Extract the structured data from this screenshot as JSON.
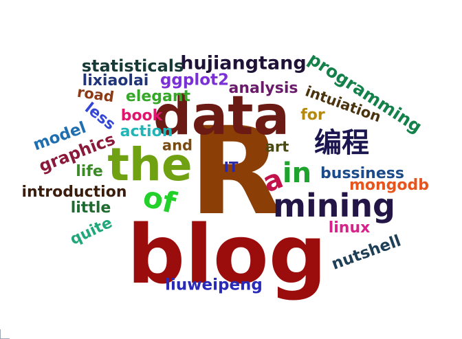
{
  "words": [
    {
      "id": "blog",
      "text": "blog",
      "color": "#9b0d0d"
    },
    {
      "id": "R",
      "text": "R",
      "color": "#8b3f06"
    },
    {
      "id": "data",
      "text": "data",
      "color": "#6b1a14"
    },
    {
      "id": "the",
      "text": "the",
      "color": "#6fa112"
    },
    {
      "id": "mining",
      "text": "mining",
      "color": "#231647"
    },
    {
      "id": "of",
      "text": "of",
      "color": "#23d12a"
    },
    {
      "id": "in",
      "text": "in",
      "color": "#1fa32e"
    },
    {
      "id": "a",
      "text": "a",
      "color": "#c1124a"
    },
    {
      "id": "biancheng",
      "text": "编程",
      "color": "#1b1650"
    },
    {
      "id": "programming",
      "text": "programming",
      "color": "#14804a"
    },
    {
      "id": "hujiangtang",
      "text": "hujiangtang",
      "color": "#1e1236"
    },
    {
      "id": "statisticals",
      "text": "statisticals",
      "color": "#173a36"
    },
    {
      "id": "ggplot2",
      "text": "ggplot2",
      "color": "#7b2fd6"
    },
    {
      "id": "lixiaolai",
      "text": "lixiaolai",
      "color": "#20347a"
    },
    {
      "id": "road",
      "text": "road",
      "color": "#8b3b18"
    },
    {
      "id": "elegant",
      "text": "elegant",
      "color": "#36a828"
    },
    {
      "id": "analysis",
      "text": "analysis",
      "color": "#6a1c6b"
    },
    {
      "id": "intuiation",
      "text": "intuiation",
      "color": "#4a3410"
    },
    {
      "id": "less",
      "text": "less",
      "color": "#3446d6"
    },
    {
      "id": "book",
      "text": "book",
      "color": "#e0156e"
    },
    {
      "id": "for",
      "text": "for",
      "color": "#b5880e"
    },
    {
      "id": "model",
      "text": "model",
      "color": "#1f6fb0"
    },
    {
      "id": "action",
      "text": "action",
      "color": "#22b5b8"
    },
    {
      "id": "graphics",
      "text": "graphics",
      "color": "#8b1a3a"
    },
    {
      "id": "and",
      "text": "and",
      "color": "#7a4a13"
    },
    {
      "id": "art",
      "text": "art",
      "color": "#4a4a12"
    },
    {
      "id": "IT",
      "text": "IT",
      "color": "#2d2aa8"
    },
    {
      "id": "life",
      "text": "life",
      "color": "#3c8a27"
    },
    {
      "id": "bussiness",
      "text": "bussiness",
      "color": "#1c4b8a"
    },
    {
      "id": "mongodb",
      "text": "mongodb",
      "color": "#e8551c"
    },
    {
      "id": "introduction",
      "text": "introduction",
      "color": "#3a1d0d"
    },
    {
      "id": "little",
      "text": "little",
      "color": "#1d6b2f"
    },
    {
      "id": "quite",
      "text": "quite",
      "color": "#20a87a"
    },
    {
      "id": "linux",
      "text": "linux",
      "color": "#d8228b"
    },
    {
      "id": "nutshell",
      "text": "nutshell",
      "color": "#1e3f55"
    },
    {
      "id": "liuweipeng",
      "text": "liuweipeng",
      "color": "#2a2ab8"
    }
  ]
}
